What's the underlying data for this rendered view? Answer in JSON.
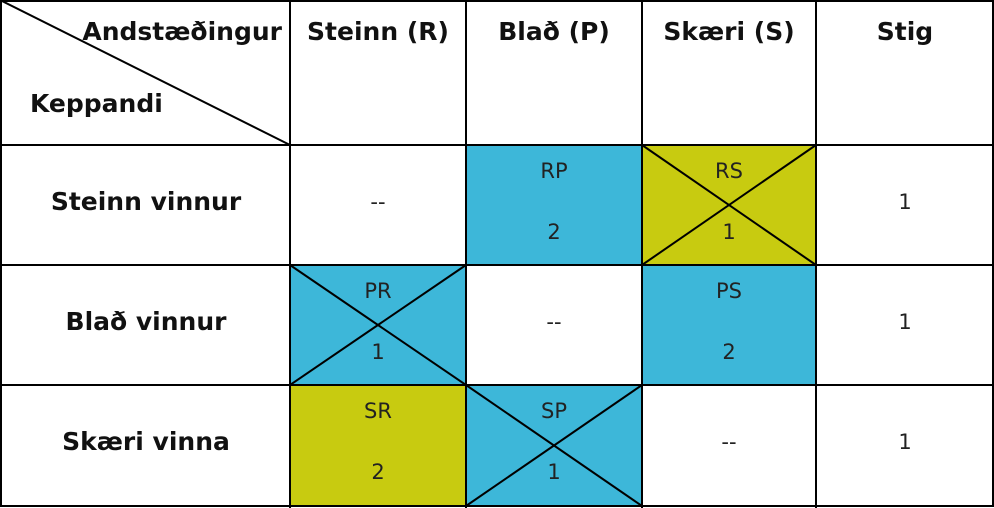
{
  "table": {
    "corner": {
      "top": "Andstæðingur",
      "bottom": "Keppandi"
    },
    "columns": [
      "Steinn (R)",
      "Blað (P)",
      "Skæri (S)",
      "Stig"
    ],
    "rows": [
      {
        "label": "Steinn vinnur",
        "cells": [
          "--",
          {
            "code": "RP",
            "value": 2
          },
          {
            "code": "RS",
            "value": 1
          },
          1
        ]
      },
      {
        "label": "Blað vinnur",
        "cells": [
          {
            "code": "PR",
            "value": 1
          },
          "--",
          {
            "code": "PS",
            "value": 2
          },
          1
        ]
      },
      {
        "label": "Skæri vinna",
        "cells": [
          {
            "code": "SR",
            "value": 2
          },
          {
            "code": "SP",
            "value": 1
          },
          "--",
          1
        ]
      }
    ]
  }
}
